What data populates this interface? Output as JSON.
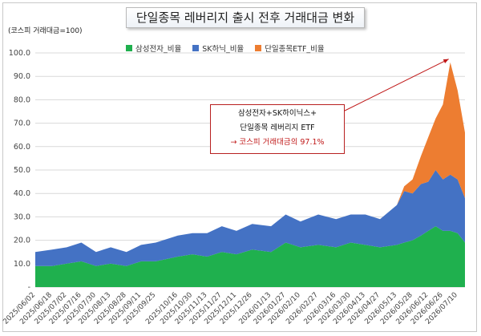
{
  "title": "단일종목 레버리지 출시 전후 거래대금 변화",
  "unit_label": "(코스피 거래대금=100)",
  "callout": {
    "line1": "삼성전자+SK하이닉스+",
    "line2": "단일종목 레버리지 ETF",
    "line3": "→ 코스피 거래대금의 97.1%"
  },
  "colors": {
    "series1": "#1fb04e",
    "series2": "#4472c4",
    "series3": "#ed7d31",
    "callout": "#c01818"
  },
  "chart_data": {
    "type": "area",
    "stacked": true,
    "title": "단일종목 레버리지 출시 전후 거래대금 변화",
    "ylabel": "(코스피 거래대금=100)",
    "ylim": [
      0,
      100
    ],
    "yticks": [
      "-",
      "10.0",
      "20.0",
      "30.0",
      "40.0",
      "50.0",
      "60.0",
      "70.0",
      "80.0",
      "90.0",
      "100.0"
    ],
    "legend_position": "top",
    "grid": true,
    "x_tick_labels": [
      "2025/06/02",
      "2025/06/18",
      "2025/07/02",
      "2025/07/16",
      "2025/07/30",
      "2025/08/13",
      "2025/08/28",
      "2025/09/11",
      "2025/09/25",
      "2025/10/16",
      "2025/10/30",
      "2025/11/13",
      "2025/11/27",
      "2025/12/11",
      "2025/12/26",
      "2026/01/13",
      "2026/01/27",
      "2026/02/10",
      "2026/02/27",
      "2026/03/16",
      "2026/03/30",
      "2026/04/13",
      "2026/04/27",
      "2026/05/13",
      "2026/05/28",
      "2026/06/12",
      "2026/06/26",
      "2026/07/10"
    ],
    "x": [
      "2025/06/02",
      "2025/06/18",
      "2025/07/02",
      "2025/07/16",
      "2025/07/30",
      "2025/08/13",
      "2025/08/28",
      "2025/09/11",
      "2025/09/25",
      "2025/10/16",
      "2025/10/30",
      "2025/11/13",
      "2025/11/27",
      "2025/12/11",
      "2025/12/26",
      "2026/01/13",
      "2026/01/27",
      "2026/02/10",
      "2026/02/27",
      "2026/03/16",
      "2026/03/30",
      "2026/04/13",
      "2026/04/27",
      "2026/05/13",
      "2026/05/20",
      "2026/05/28",
      "2026/06/05",
      "2026/06/12",
      "2026/06/19",
      "2026/06/26",
      "2026/07/03",
      "2026/07/10",
      "2026/07/17"
    ],
    "series": [
      {
        "name": "삼성전자_비율",
        "values": [
          9,
          9,
          10,
          11,
          9,
          10,
          9,
          11,
          11,
          13,
          14,
          13,
          15,
          14,
          16,
          15,
          19,
          17,
          18,
          17,
          19,
          18,
          17,
          18,
          19,
          20,
          22,
          24,
          26,
          24,
          24,
          23,
          19
        ]
      },
      {
        "name": "SK하닉_비율",
        "values": [
          6,
          7,
          7,
          8,
          6,
          7,
          6,
          7,
          8,
          9,
          9,
          10,
          11,
          10,
          11,
          11,
          12,
          11,
          13,
          12,
          12,
          13,
          12,
          17,
          22,
          20,
          22,
          21,
          24,
          22,
          24,
          23,
          19
        ]
      },
      {
        "name": "단일종목ETF_비율",
        "values": [
          0,
          0,
          0,
          0,
          0,
          0,
          0,
          0,
          0,
          0,
          0,
          0,
          0,
          0,
          0,
          0,
          0,
          0,
          0,
          0,
          0,
          0,
          0,
          0,
          2,
          6,
          12,
          19,
          22,
          32,
          48,
          38,
          28
        ]
      }
    ],
    "annotation": "→ 코스피 거래대금의 97.1%",
    "annotation_value": 97.1
  }
}
